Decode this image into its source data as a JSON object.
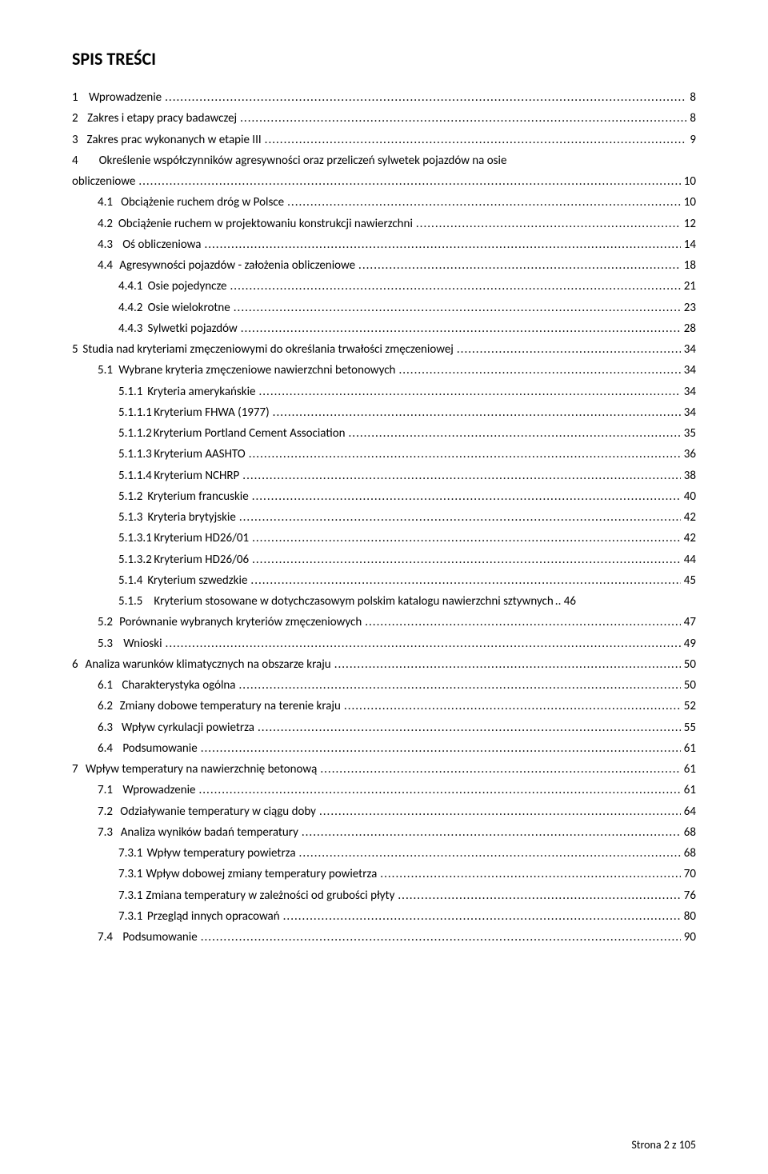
{
  "title": "SPIS TREŚCI",
  "footer": "Strona 2 z 105",
  "font": {
    "family": "Calibri",
    "title_size_pt": 16,
    "body_size_pt": 11
  },
  "colors": {
    "text": "#000000",
    "background": "#ffffff"
  },
  "toc": [
    {
      "num": "1",
      "label": "Wprowadzenie",
      "page": "8",
      "indent": 0
    },
    {
      "num": "2",
      "label": "Zakres i etapy pracy badawczej",
      "page": "8",
      "indent": 0
    },
    {
      "num": "3",
      "label": "Zakres prac wykonanych w  etapie III",
      "page": "9",
      "indent": 0
    },
    {
      "num": "4",
      "label": "Określenie współczynników agresywności oraz przeliczeń sylwetek pojazdów na osie",
      "page": "",
      "indent": 0,
      "nowrap_break": true
    },
    {
      "num": "",
      "label": "obliczeniowe",
      "page": "10",
      "indent": 0,
      "continuation": true
    },
    {
      "num": "4.1",
      "label": "Obciążenie ruchem dróg w Polsce",
      "page": "10",
      "indent": 1
    },
    {
      "num": "4.2",
      "label": "Obciążenie ruchem w projektowaniu konstrukcji nawierzchni",
      "page": "12",
      "indent": 1
    },
    {
      "num": "4.3",
      "label": "Oś obliczeniowa",
      "page": "14",
      "indent": 1
    },
    {
      "num": "4.4",
      "label": "Agresywności pojazdów - założenia obliczeniowe",
      "page": "18",
      "indent": 1
    },
    {
      "num": "4.4.1",
      "label": "Osie pojedyncze",
      "page": "21",
      "indent": 2
    },
    {
      "num": "4.4.2",
      "label": "Osie wielokrotne",
      "page": "23",
      "indent": 2
    },
    {
      "num": "4.4.3",
      "label": "Sylwetki pojazdów",
      "page": "28",
      "indent": 2
    },
    {
      "num": "5",
      "label": "Studia nad kryteriami zmęczeniowymi do określania trwałości zmęczeniowej",
      "page": "34",
      "indent": 0
    },
    {
      "num": "5.1",
      "label": "Wybrane kryteria zmęczeniowe nawierzchni betonowych",
      "page": "34",
      "indent": 1
    },
    {
      "num": "5.1.1",
      "label": "Kryteria amerykańskie",
      "page": "34",
      "indent": 2
    },
    {
      "num": "5.1.1.1",
      "label": "Kryterium FHWA (1977)",
      "page": "34",
      "indent": 2
    },
    {
      "num": "5.1.1.2",
      "label": "Kryterium Portland Cement Association",
      "page": "35",
      "indent": 2
    },
    {
      "num": "5.1.1.3",
      "label": "Kryterium AASHTO",
      "page": "36",
      "indent": 2
    },
    {
      "num": "5.1.1.4",
      "label": "Kryterium NCHRP",
      "page": "38",
      "indent": 2
    },
    {
      "num": "5.1.2",
      "label": "Kryterium francuskie",
      "page": "40",
      "indent": 2
    },
    {
      "num": "5.1.3",
      "label": "Kryteria brytyjskie",
      "page": "42",
      "indent": 2
    },
    {
      "num": "5.1.3.1",
      "label": "Kryterium HD26/01",
      "page": "42",
      "indent": 2
    },
    {
      "num": "5.1.3.2",
      "label": "Kryterium HD26/06",
      "page": "44",
      "indent": 2
    },
    {
      "num": "5.1.4",
      "label": "Kryterium szwedzkie",
      "page": "45",
      "indent": 2
    },
    {
      "num": "5.1.5",
      "label": "Kryterium stosowane w dotychczasowym polskim katalogu nawierzchni sztywnych",
      "page": ".. 46",
      "indent": 2,
      "nodots": true
    },
    {
      "num": "5.2",
      "label": "Porównanie wybranych kryteriów zmęczeniowych",
      "page": "47",
      "indent": 1
    },
    {
      "num": "5.3",
      "label": "Wnioski",
      "page": "49",
      "indent": 1
    },
    {
      "num": "6",
      "label": "Analiza warunków klimatycznych na obszarze kraju",
      "page": "50",
      "indent": 0
    },
    {
      "num": "6.1",
      "label": "Charakterystyka ogólna",
      "page": "50",
      "indent": 1
    },
    {
      "num": "6.2",
      "label": "Zmiany dobowe temperatury na terenie kraju",
      "page": "52",
      "indent": 1
    },
    {
      "num": "6.3",
      "label": "Wpływ cyrkulacji powietrza",
      "page": "55",
      "indent": 1
    },
    {
      "num": "6.4",
      "label": "Podsumowanie",
      "page": "61",
      "indent": 1
    },
    {
      "num": "7",
      "label": "Wpływ temperatury na nawierzchnię betonową",
      "page": "61",
      "indent": 0
    },
    {
      "num": "7.1",
      "label": "Wprowadzenie",
      "page": "61",
      "indent": 1
    },
    {
      "num": "7.2",
      "label": "Odziaływanie temperatury w ciągu doby",
      "page": "64",
      "indent": 1
    },
    {
      "num": "7.3",
      "label": "Analiza wyników badań temperatury",
      "page": "68",
      "indent": 1
    },
    {
      "num": "7.3.1",
      "label": "Wpływ temperatury powietrza",
      "page": "68",
      "indent": 2
    },
    {
      "num": "7.3.1",
      "label": "Wpływ dobowej zmiany temperatury powietrza",
      "page": "70",
      "indent": 2
    },
    {
      "num": "7.3.1",
      "label": "Zmiana temperatury w zależności od grubości płyty",
      "page": "76",
      "indent": 2
    },
    {
      "num": "7.3.1",
      "label": "Przegląd innych opracowań",
      "page": "80",
      "indent": 2
    },
    {
      "num": "7.4",
      "label": "Podsumowanie",
      "page": "90",
      "indent": 1
    }
  ]
}
